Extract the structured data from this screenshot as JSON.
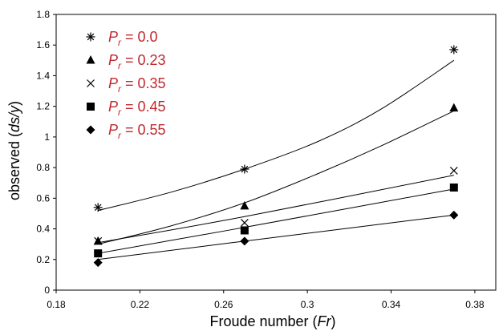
{
  "chart_data": {
    "type": "scatter",
    "title": "",
    "xlabel": {
      "prefix": "Froude number (",
      "var": "Fr",
      "suffix": ")"
    },
    "ylabel": {
      "prefix": "observed (",
      "var": "ds/y",
      "suffix": ")"
    },
    "xlim": [
      0.18,
      0.39
    ],
    "ylim": [
      0,
      1.8
    ],
    "xticks": [
      0.18,
      0.22,
      0.26,
      0.3,
      0.34,
      0.38
    ],
    "xtick_labels": [
      "0.18",
      "0.22",
      "0.26",
      "0.3",
      "0.34",
      "0.38"
    ],
    "yticks": [
      0,
      0.2,
      0.4,
      0.6,
      0.8,
      1,
      1.2,
      1.4,
      1.6,
      1.8
    ],
    "ytick_labels": [
      "0",
      "0.2",
      "0.4",
      "0.6",
      "0.8",
      "1",
      "1.2",
      "1.4",
      "1.6",
      "1.8"
    ],
    "grid": false,
    "legend_position": "top-left",
    "legend_color": "#c0282d",
    "series": [
      {
        "name": "P_r = 0.0",
        "label_var": "P",
        "label_sub": "r",
        "label_value": " = 0.0",
        "marker": "asterisk",
        "x": [
          0.2,
          0.27,
          0.37
        ],
        "y": [
          0.54,
          0.79,
          1.57
        ],
        "trend": [
          [
            0.2,
            0.52
          ],
          [
            0.235,
            0.64
          ],
          [
            0.27,
            0.79
          ],
          [
            0.305,
            0.97
          ],
          [
            0.335,
            1.18
          ],
          [
            0.37,
            1.5
          ]
        ]
      },
      {
        "name": "P_r = 0.23",
        "label_var": "P",
        "label_sub": "r",
        "label_value": " = 0.23",
        "marker": "triangle",
        "x": [
          0.2,
          0.27,
          0.37
        ],
        "y": [
          0.32,
          0.55,
          1.19
        ],
        "trend": [
          [
            0.2,
            0.3
          ],
          [
            0.235,
            0.42
          ],
          [
            0.27,
            0.57
          ],
          [
            0.305,
            0.76
          ],
          [
            0.335,
            0.94
          ],
          [
            0.37,
            1.17
          ]
        ]
      },
      {
        "name": "P_r = 0.35",
        "label_var": "P",
        "label_sub": "r",
        "label_value": " = 0.35",
        "marker": "x",
        "x": [
          0.2,
          0.27,
          0.37
        ],
        "y": [
          0.32,
          0.44,
          0.78
        ],
        "trend": [
          [
            0.2,
            0.31
          ],
          [
            0.27,
            0.48
          ],
          [
            0.37,
            0.75
          ]
        ]
      },
      {
        "name": "P_r = 0.45",
        "label_var": "P",
        "label_sub": "r",
        "label_value": " = 0.45",
        "marker": "square",
        "x": [
          0.2,
          0.27,
          0.37
        ],
        "y": [
          0.24,
          0.39,
          0.67
        ],
        "trend": [
          [
            0.2,
            0.24
          ],
          [
            0.27,
            0.41
          ],
          [
            0.37,
            0.66
          ]
        ]
      },
      {
        "name": "P_r = 0.55",
        "label_var": "P",
        "label_sub": "r",
        "label_value": " = 0.55",
        "marker": "diamond",
        "x": [
          0.2,
          0.27,
          0.37
        ],
        "y": [
          0.18,
          0.32,
          0.49
        ],
        "trend": [
          [
            0.2,
            0.2
          ],
          [
            0.27,
            0.32
          ],
          [
            0.37,
            0.49
          ]
        ]
      }
    ]
  }
}
